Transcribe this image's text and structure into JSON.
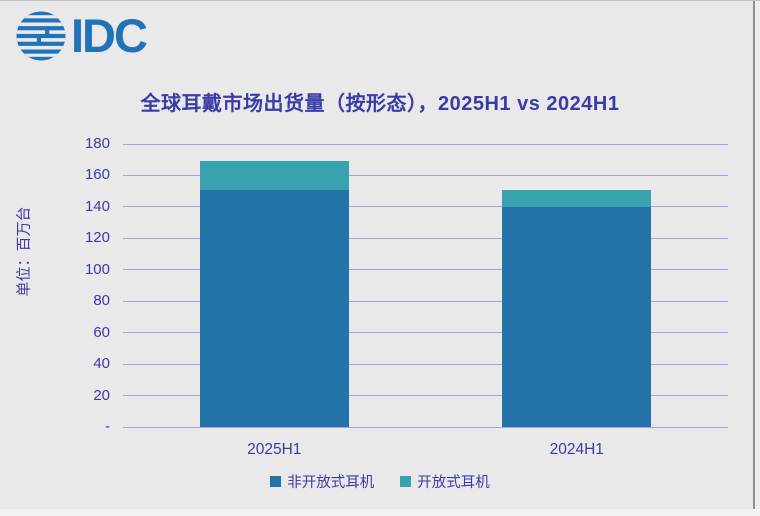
{
  "logo": {
    "word": "IDC",
    "globe_icon": "idc-globe-icon",
    "color": "#2173b9"
  },
  "title": "全球耳戴市场出货量（按形态），2025H1 vs 2024H1",
  "chart_data": {
    "type": "bar",
    "stacked": true,
    "title": "全球耳戴市场出货量（按形态），2025H1 vs 2024H1",
    "categories": [
      "2025H1",
      "2024H1"
    ],
    "series": [
      {
        "name": "非开放式耳机",
        "color": "#2473a8",
        "values": [
          151,
          140
        ]
      },
      {
        "name": "开放式耳机",
        "color": "#38a2af",
        "values": [
          18,
          11
        ]
      }
    ],
    "totals": [
      169,
      151
    ],
    "ylabel": "单位：百万台",
    "xlabel": "",
    "ylim": [
      0,
      180
    ],
    "ytick_step": 20,
    "ytick_labels": [
      "-",
      "20",
      "40",
      "60",
      "80",
      "100",
      "120",
      "140",
      "160",
      "180"
    ],
    "grid": true,
    "gridline_color": "#a4a4d6",
    "legend_position": "bottom",
    "text_color": "#3b3ba8",
    "background_color": "#e9e9e9"
  }
}
